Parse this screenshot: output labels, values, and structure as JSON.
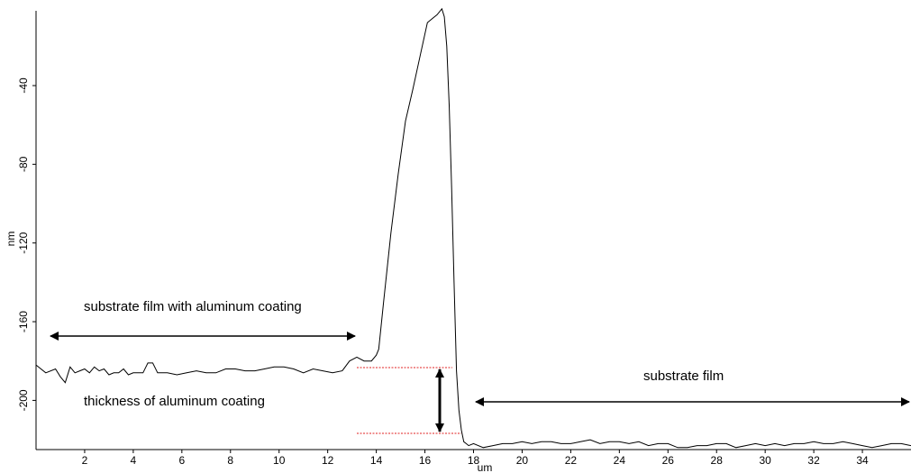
{
  "chart_data": {
    "type": "line",
    "title": "",
    "xlabel": "um",
    "ylabel": "nm",
    "xlim": [
      0,
      36
    ],
    "ylim": [
      -225,
      -2
    ],
    "x_ticks": [
      2,
      4,
      6,
      8,
      10,
      12,
      14,
      16,
      18,
      20,
      22,
      24,
      26,
      28,
      30,
      32,
      34
    ],
    "y_ticks": [
      -40,
      -80,
      -120,
      -160,
      -200
    ],
    "grid": false,
    "legend": "none",
    "line_color": "#000000",
    "series": [
      {
        "x": [
          0,
          0.4,
          0.8,
          1.0,
          1.2,
          1.4,
          1.6,
          1.8,
          2.0,
          2.2,
          2.4,
          2.6,
          2.8,
          3.0,
          3.2,
          3.4,
          3.6,
          3.8,
          4.0,
          4.2,
          4.4,
          4.6,
          4.8,
          5.0,
          5.4,
          5.8,
          6.2,
          6.6,
          7.0,
          7.4,
          7.8,
          8.2,
          8.6,
          9.0,
          9.4,
          9.8,
          10.2,
          10.6,
          11.0,
          11.4,
          11.8,
          12.2,
          12.6,
          12.9,
          13.2,
          13.5,
          13.8,
          14.0,
          14.1,
          14.3,
          14.6,
          14.9,
          15.2,
          15.5,
          15.8,
          16.1,
          16.3,
          16.5,
          16.7,
          16.8,
          16.9,
          17.0,
          17.1,
          17.2,
          17.3,
          17.4,
          17.5,
          17.6,
          17.7,
          17.8,
          18.0,
          18.4,
          18.8,
          19.2,
          19.6,
          20.0,
          20.4,
          20.8,
          21.2,
          21.6,
          22.0,
          22.4,
          22.8,
          23.2,
          23.6,
          24.0,
          24.4,
          24.8,
          25.2,
          25.6,
          26.0,
          26.4,
          26.8,
          27.2,
          27.6,
          28.0,
          28.4,
          28.8,
          29.2,
          29.6,
          30.0,
          30.4,
          30.8,
          31.2,
          31.6,
          32.0,
          32.4,
          32.8,
          33.2,
          33.6,
          34.0,
          34.4,
          34.8,
          35.2,
          35.6,
          36.0
        ],
        "y": [
          -182,
          -186,
          -184,
          -188,
          -191,
          -183,
          -186,
          -185,
          -184,
          -186,
          -183,
          -185,
          -184,
          -187,
          -186,
          -186,
          -184,
          -187,
          -186,
          -186,
          -186,
          -181,
          -181,
          -186,
          -186,
          -187,
          -186,
          -185,
          -186,
          -186,
          -184,
          -184,
          -185,
          -185,
          -184,
          -183,
          -183,
          -184,
          -186,
          -184,
          -185,
          -186,
          -185,
          -180,
          -178,
          -180,
          -180,
          -177,
          -174,
          -150,
          -115,
          -85,
          -58,
          -42,
          -25,
          -8,
          -6,
          -4,
          -1,
          -5,
          -20,
          -50,
          -92,
          -140,
          -185,
          -205,
          -215,
          -221,
          -222,
          -223,
          -222,
          -224,
          -223,
          -222,
          -222,
          -221,
          -222,
          -221,
          -221,
          -222,
          -222,
          -221,
          -220,
          -222,
          -221,
          -221,
          -222,
          -221,
          -223,
          -222,
          -222,
          -224,
          -224,
          -223,
          -223,
          -222,
          -222,
          -224,
          -223,
          -222,
          -223,
          -222,
          -223,
          -222,
          -222,
          -221,
          -222,
          -222,
          -221,
          -222,
          -223,
          -224,
          -223,
          -222,
          -222,
          -223
        ]
      }
    ],
    "annotations": [
      {
        "text": "substrate film with aluminum coating"
      },
      {
        "text": "thickness of aluminum coating"
      },
      {
        "text": "substrate film"
      }
    ]
  }
}
